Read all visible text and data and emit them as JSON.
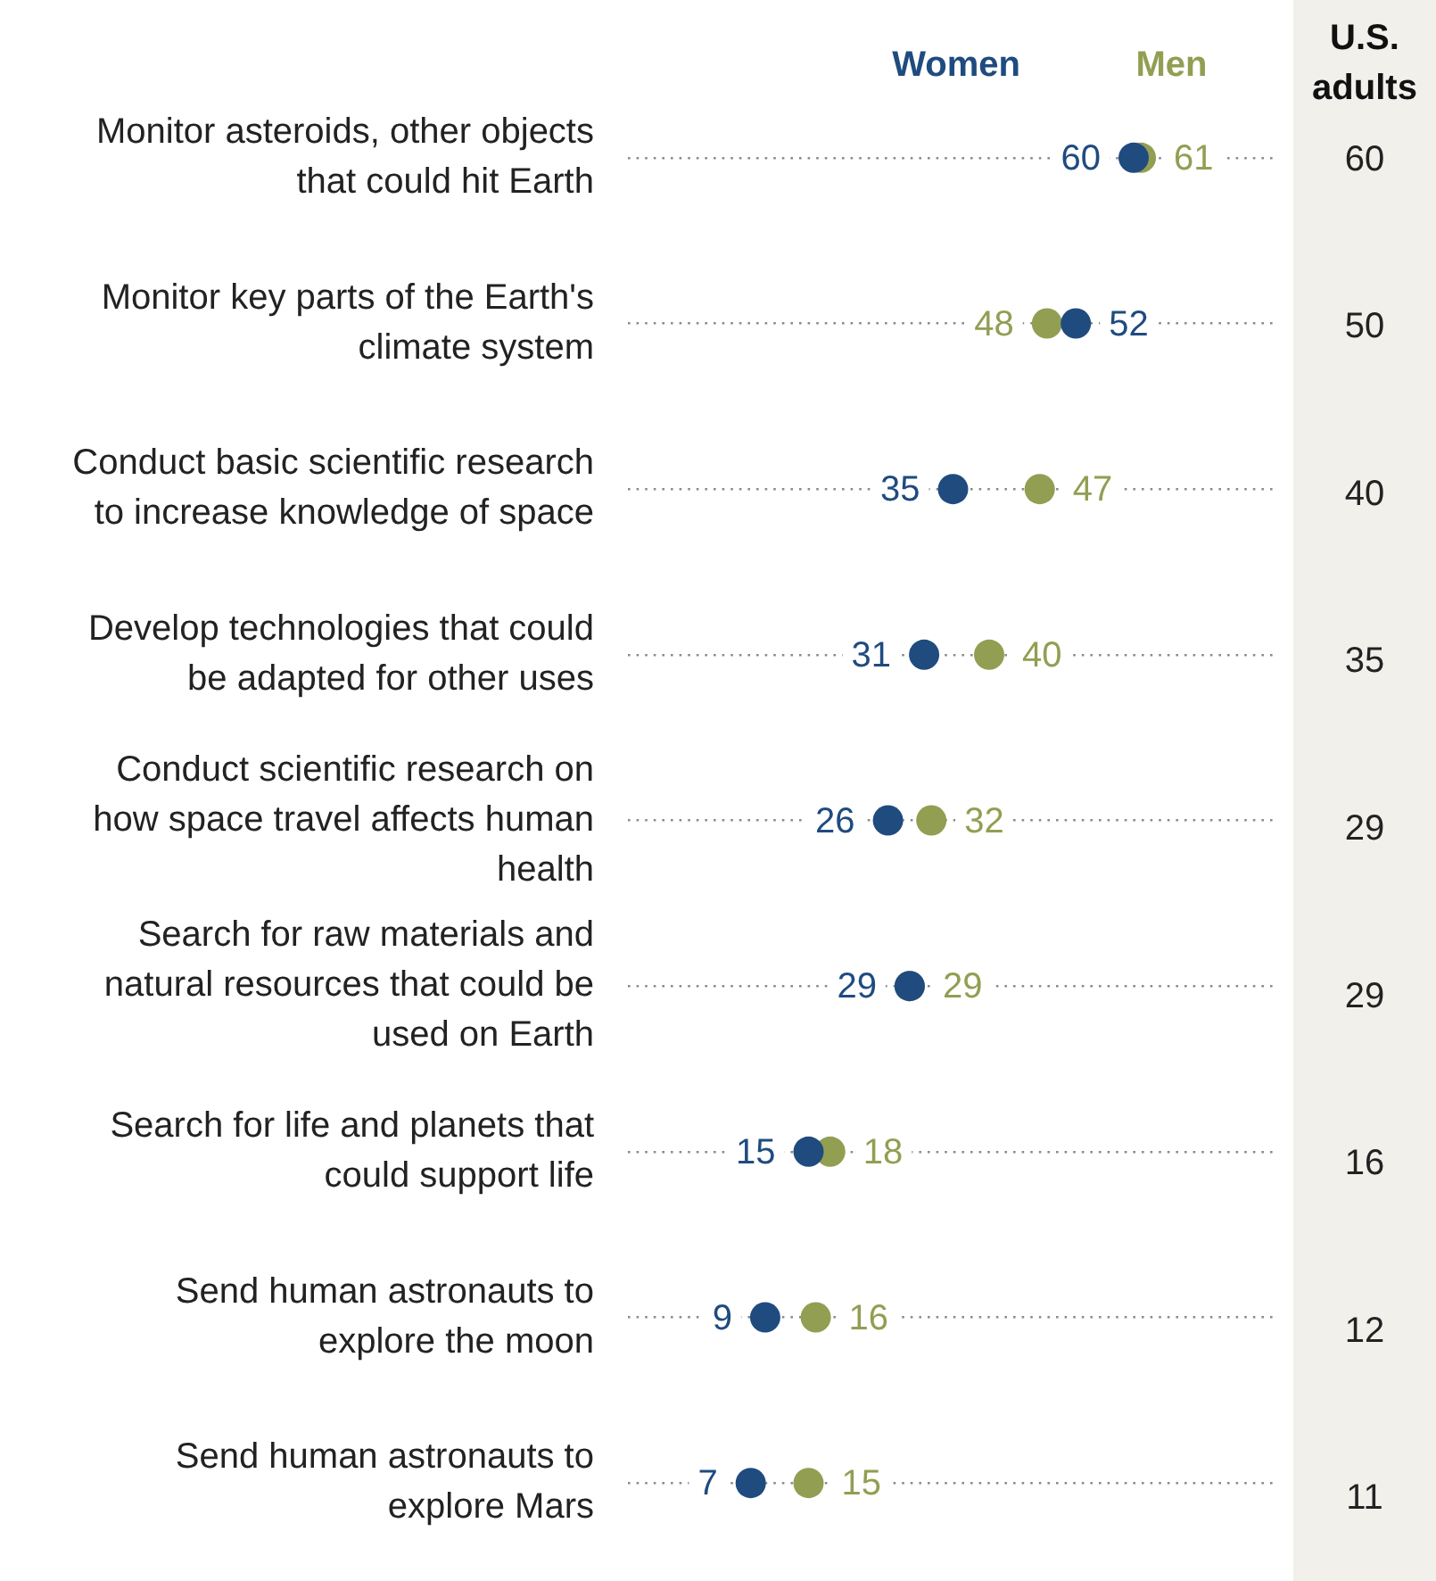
{
  "chart_data": [
    {
      "type": "scatter",
      "orientation": "horizontal",
      "categories": [
        "Monitor asteroids, other objects that could hit Earth",
        "Monitor key parts of the Earth's climate system",
        "Conduct basic scientific research to increase knowledge of space",
        "Develop technologies that could be adapted for other uses",
        "Conduct scientific research on how space travel affects human health",
        "Search for raw materials and natural resources that could be used on Earth",
        "Search for life and planets that could support life",
        "Send human astronauts to explore the moon",
        "Send human astronauts to explore Mars"
      ],
      "series": [
        {
          "name": "Women",
          "color": "#1f4b7f",
          "values": [
            60,
            52,
            35,
            31,
            26,
            29,
            15,
            9,
            7
          ]
        },
        {
          "name": "Men",
          "color": "#929e52",
          "values": [
            61,
            48,
            47,
            40,
            32,
            29,
            18,
            16,
            15
          ]
        }
      ],
      "xlim": [
        -10,
        80
      ],
      "data_labels": true,
      "grid": "y",
      "legend": "top",
      "tick_labels": "y",
      "marker": "circle"
    },
    {
      "type": "other",
      "title": "U.S. adults",
      "categories": [
        null,
        null,
        null,
        null,
        null,
        null,
        null,
        null,
        null
      ],
      "values": [
        60,
        50,
        40,
        35,
        29,
        29,
        16,
        12,
        11
      ],
      "data_labels": true
    }
  ]
}
